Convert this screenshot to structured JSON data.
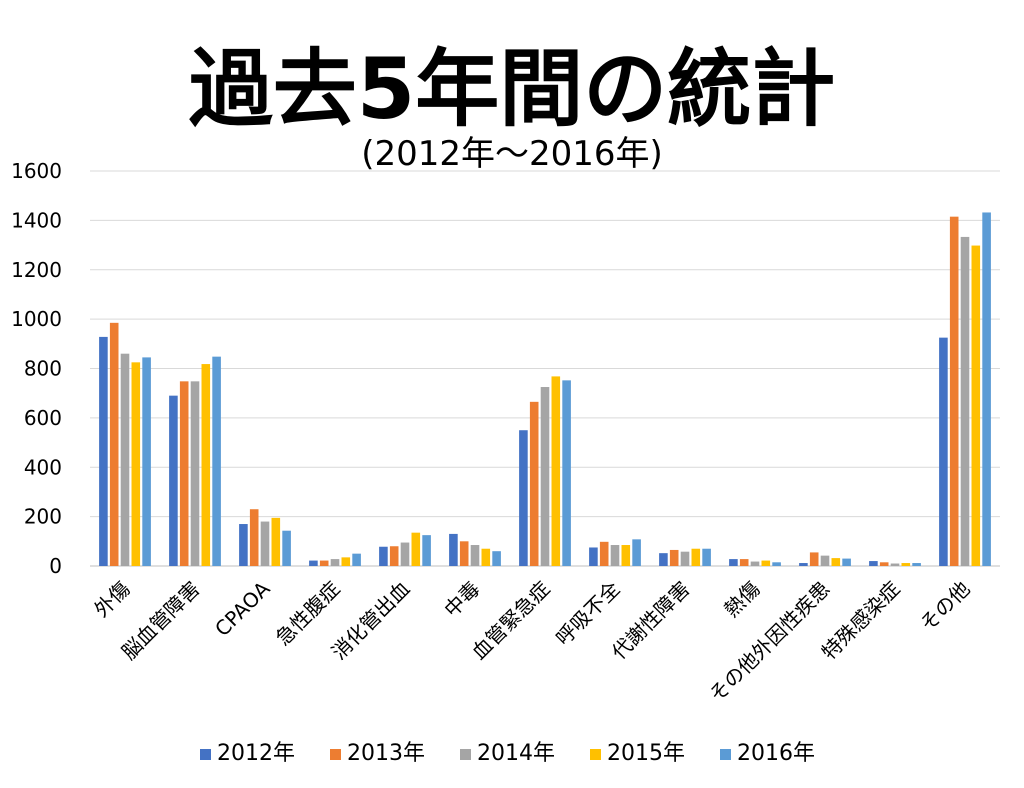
{
  "chart_data": {
    "type": "bar",
    "title": "過去5年間の統計",
    "subtitle": "(2012年～2016年)",
    "xlabel": "",
    "ylabel": "",
    "ylim": [
      0,
      1600
    ],
    "yticks": [
      0,
      200,
      400,
      600,
      800,
      1000,
      1200,
      1400,
      1600
    ],
    "grid": true,
    "legend_position": "bottom",
    "categories": [
      "外傷",
      "脳血管障害",
      "CPAOA",
      "急性腹症",
      "消化管出血",
      "中毒",
      "血管緊急症",
      "呼吸不全",
      "代謝性障害",
      "熱傷",
      "その他外因性疾患",
      "特殊感染症",
      "その他"
    ],
    "series": [
      {
        "name": "2012年",
        "color": "#4472C4",
        "values": [
          928,
          690,
          170,
          22,
          78,
          130,
          550,
          75,
          52,
          28,
          12,
          20,
          925
        ]
      },
      {
        "name": "2013年",
        "color": "#ED7D31",
        "values": [
          985,
          748,
          230,
          22,
          80,
          100,
          665,
          98,
          65,
          28,
          55,
          15,
          1415
        ]
      },
      {
        "name": "2014年",
        "color": "#A5A5A5",
        "values": [
          860,
          748,
          180,
          28,
          95,
          85,
          725,
          85,
          58,
          18,
          42,
          10,
          1333
        ]
      },
      {
        "name": "2015年",
        "color": "#FFC000",
        "values": [
          825,
          818,
          195,
          35,
          135,
          70,
          768,
          85,
          70,
          22,
          32,
          12,
          1298
        ]
      },
      {
        "name": "2016年",
        "color": "#5B9BD5",
        "values": [
          845,
          848,
          143,
          50,
          125,
          60,
          752,
          108,
          70,
          15,
          30,
          12,
          1432
        ]
      }
    ]
  }
}
